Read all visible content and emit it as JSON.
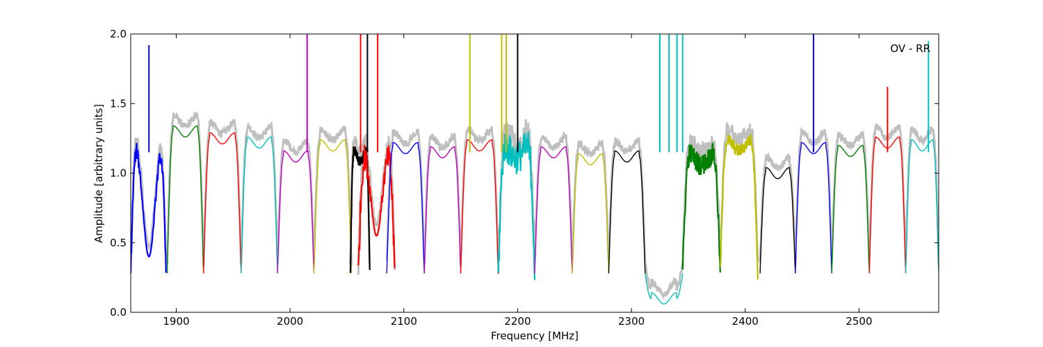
{
  "chart_data": {
    "type": "line",
    "title": "",
    "annotation": "OV - RR",
    "xlabel": "Frequency [MHz]",
    "ylabel": "Amplitude [arbitrary units]",
    "xlim": [
      1860,
      2570
    ],
    "ylim": [
      0.0,
      2.0
    ],
    "xticks": [
      1900,
      2000,
      2100,
      2200,
      2300,
      2400,
      2500
    ],
    "xtick_labels": [
      "1900",
      "2000",
      "2100",
      "2200",
      "2300",
      "2400",
      "2500"
    ],
    "yticks": [
      0.0,
      0.5,
      1.0,
      1.5,
      2.0
    ],
    "ytick_labels": [
      "0.0",
      "0.5",
      "1.0",
      "1.5",
      "2.0"
    ],
    "grid": false,
    "background_series_color": "#bfbfbf",
    "bands": [
      {
        "start": 1860,
        "end": 1891,
        "color": "#0000ff",
        "base": 1.2,
        "noise": 0.06,
        "dip": [
          1876,
          0.4,
          7
        ]
      },
      {
        "start": 1892,
        "end": 1924,
        "color": "#007f00",
        "base": 1.3
      },
      {
        "start": 1924,
        "end": 1957,
        "color": "#ff0000",
        "base": 1.25
      },
      {
        "start": 1957,
        "end": 1989,
        "color": "#00bfbf",
        "base": 1.22
      },
      {
        "start": 1989,
        "end": 2021,
        "color": "#bf00bf",
        "base": 1.12
      },
      {
        "start": 2021,
        "end": 2054,
        "color": "#bfbf00",
        "base": 1.2
      },
      {
        "start": 2053,
        "end": 2070,
        "color": "#000000",
        "base": 1.12,
        "noise": 0.04
      },
      {
        "start": 2060,
        "end": 2092,
        "color": "#ff0000",
        "base": 1.1,
        "noise": 0.1,
        "dip": [
          2076,
          0.55,
          6
        ]
      },
      {
        "start": 2085,
        "end": 2118,
        "color": "#0000ff",
        "base": 1.18
      },
      {
        "start": 2118,
        "end": 2150,
        "color": "#bf00bf",
        "base": 1.15
      },
      {
        "start": 2150,
        "end": 2183,
        "color": "#ff0000",
        "base": 1.2
      },
      {
        "start": 2183,
        "end": 2215,
        "color": "#00bfbf",
        "base": 1.15,
        "noise": 0.12
      },
      {
        "start": 2215,
        "end": 2248,
        "color": "#bf00bf",
        "base": 1.15
      },
      {
        "start": 2248,
        "end": 2280,
        "color": "#bfbf00",
        "base": 1.1
      },
      {
        "start": 2280,
        "end": 2312,
        "color": "#000000",
        "base": 1.12
      },
      {
        "start": 2312,
        "end": 2345,
        "color": "#00bfbf",
        "base": 0.1
      },
      {
        "start": 2345,
        "end": 2378,
        "color": "#007f00",
        "base": 1.1,
        "noise": 0.08
      },
      {
        "start": 2378,
        "end": 2411,
        "color": "#bfbf00",
        "base": 1.2,
        "noise": 0.05
      },
      {
        "start": 2413,
        "end": 2444,
        "color": "#000000",
        "base": 1.0
      },
      {
        "start": 2444,
        "end": 2476,
        "color": "#0000ff",
        "base": 1.18
      },
      {
        "start": 2476,
        "end": 2509,
        "color": "#007f00",
        "base": 1.16
      },
      {
        "start": 2509,
        "end": 2541,
        "color": "#ff0000",
        "base": 1.22
      },
      {
        "start": 2541,
        "end": 2570,
        "color": "#00bfbf",
        "base": 1.2
      }
    ],
    "spikes": [
      {
        "x": 1876,
        "y": 1.92,
        "color": "#0000ff"
      },
      {
        "x": 2015,
        "y": 2.0,
        "color": "#bf00bf"
      },
      {
        "x": 2062,
        "y": 2.0,
        "color": "#ff0000"
      },
      {
        "x": 2068,
        "y": 2.0,
        "color": "#000000"
      },
      {
        "x": 2077,
        "y": 2.0,
        "color": "#ff0000"
      },
      {
        "x": 2158,
        "y": 2.0,
        "color": "#bfbf00"
      },
      {
        "x": 2186,
        "y": 2.0,
        "color": "#bfbf00"
      },
      {
        "x": 2190,
        "y": 2.0,
        "color": "#bfbf00"
      },
      {
        "x": 2200,
        "y": 2.0,
        "color": "#000000"
      },
      {
        "x": 2325,
        "y": 2.0,
        "color": "#00bfbf"
      },
      {
        "x": 2333,
        "y": 2.0,
        "color": "#00bfbf"
      },
      {
        "x": 2340,
        "y": 2.0,
        "color": "#00bfbf"
      },
      {
        "x": 2345,
        "y": 2.0,
        "color": "#00bfbf"
      },
      {
        "x": 2460,
        "y": 2.0,
        "color": "#0000ff"
      },
      {
        "x": 2525,
        "y": 1.62,
        "color": "#ff0000"
      },
      {
        "x": 2561,
        "y": 1.95,
        "color": "#00bfbf"
      }
    ]
  }
}
